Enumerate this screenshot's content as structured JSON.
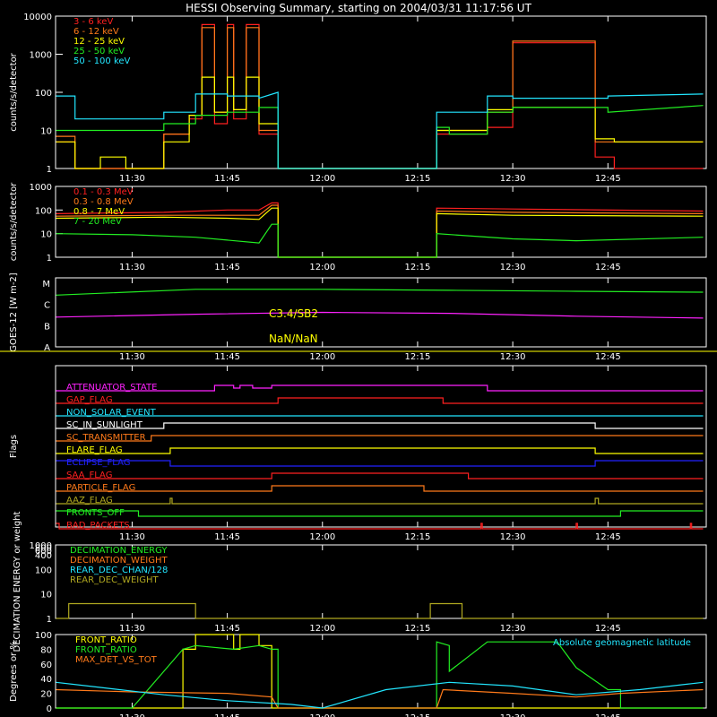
{
  "title": "HESSI Observing Summary, starting on 2004/03/31 11:17:56 UT",
  "time_ticks": [
    "11:30",
    "11:45",
    "12:00",
    "12:15",
    "12:30",
    "12:45"
  ],
  "time_tick_minutes": [
    30,
    45,
    60,
    75,
    90,
    105
  ],
  "time_range_minutes": [
    17.93,
    120.5
  ],
  "colors": {
    "red": "#ff2020",
    "orange": "#ff7a1a",
    "yellow": "#ffff00",
    "green": "#22ee22",
    "cyan": "#22e6ff",
    "magenta": "#ff22ff",
    "blue": "#2222ff",
    "olive": "#b0a820",
    "white": "#ffffff"
  },
  "chart_data": [
    {
      "id": "lc",
      "type": "line",
      "ylabel": "counts/s/detector",
      "yscale": "log",
      "ylim": [
        1,
        10000
      ],
      "ytick_labels": [
        "1",
        "10",
        "100",
        "1000",
        "10000"
      ],
      "legend_placement": "top-left",
      "series": [
        {
          "name": "3 - 6 keV",
          "color": "red",
          "x": [
            18,
            21,
            21,
            25,
            25,
            35,
            35,
            39,
            39,
            41,
            41,
            43,
            43,
            45,
            45,
            46,
            46,
            48,
            48,
            50,
            50,
            53,
            53,
            62,
            62,
            78,
            78,
            86,
            86,
            90,
            90,
            103,
            103,
            106,
            106,
            120
          ],
          "y": [
            5,
            5,
            1,
            1,
            1,
            1,
            8,
            8,
            20,
            20,
            6000,
            6000,
            15,
            15,
            6000,
            6000,
            20,
            20,
            6000,
            6000,
            8,
            8,
            1,
            1,
            1,
            1,
            8,
            8,
            12,
            12,
            2000,
            2000,
            2,
            2,
            1,
            1
          ]
        },
        {
          "name": "6 - 12 keV",
          "color": "orange",
          "x": [
            18,
            21,
            21,
            35,
            35,
            39,
            39,
            41,
            41,
            43,
            43,
            45,
            45,
            46,
            46,
            48,
            48,
            50,
            50,
            53,
            53,
            62,
            62,
            78,
            78,
            86,
            86,
            90,
            90,
            103,
            103,
            106,
            106,
            120
          ],
          "y": [
            7,
            7,
            1,
            1,
            8,
            8,
            25,
            25,
            5000,
            5000,
            30,
            30,
            5000,
            5000,
            35,
            35,
            5000,
            5000,
            10,
            10,
            1,
            1,
            1,
            1,
            10,
            10,
            30,
            30,
            2200,
            2200,
            5,
            5,
            5,
            5
          ]
        },
        {
          "name": "12 - 25 keV",
          "color": "yellow",
          "x": [
            18,
            21,
            21,
            25,
            25,
            29,
            29,
            35,
            35,
            39,
            39,
            41,
            41,
            43,
            43,
            45,
            45,
            46,
            46,
            48,
            48,
            50,
            50,
            53,
            53,
            62,
            62,
            78,
            78,
            86,
            86,
            90,
            90,
            103,
            103,
            106,
            106,
            120
          ],
          "y": [
            5,
            5,
            1,
            1,
            2,
            2,
            1,
            1,
            5,
            5,
            25,
            25,
            250,
            250,
            30,
            30,
            250,
            250,
            35,
            35,
            250,
            250,
            15,
            15,
            1,
            1,
            1,
            1,
            10,
            10,
            35,
            35,
            40,
            40,
            6,
            6,
            5,
            5
          ]
        },
        {
          "name": "25 - 50 keV",
          "color": "green",
          "x": [
            18,
            21,
            21,
            35,
            35,
            40,
            40,
            45,
            45,
            50,
            50,
            53,
            53,
            62,
            62,
            78,
            78,
            80,
            80,
            86,
            86,
            90,
            90,
            105,
            105,
            120
          ],
          "y": [
            10,
            10,
            10,
            10,
            15,
            15,
            25,
            25,
            30,
            30,
            40,
            40,
            1,
            1,
            1,
            1,
            12,
            12,
            8,
            8,
            30,
            30,
            40,
            40,
            30,
            45
          ]
        },
        {
          "name": "50 - 100 keV",
          "color": "cyan",
          "x": [
            18,
            21,
            21,
            35,
            35,
            40,
            40,
            45,
            45,
            50,
            50,
            53,
            53,
            62,
            62,
            78,
            78,
            86,
            86,
            90,
            90,
            105,
            105,
            120
          ],
          "y": [
            80,
            80,
            20,
            20,
            30,
            30,
            90,
            90,
            80,
            80,
            70,
            100,
            1,
            1,
            1,
            1,
            30,
            30,
            80,
            80,
            70,
            70,
            80,
            90
          ]
        }
      ]
    },
    {
      "id": "hi",
      "type": "line",
      "ylabel": "counts/s/detector",
      "yscale": "log",
      "ylim": [
        1,
        1000
      ],
      "ytick_labels": [
        "1",
        "10",
        "100",
        "1000"
      ],
      "legend_placement": "top-left",
      "series": [
        {
          "name": "0.1 - 0.3 MeV",
          "color": "red",
          "x": [
            18,
            35,
            45,
            50,
            52,
            53,
            53,
            78,
            78,
            90,
            120
          ],
          "y": [
            70,
            80,
            100,
            100,
            200,
            200,
            1,
            1,
            120,
            110,
            90
          ]
        },
        {
          "name": "0.3 - 0.8 MeV",
          "color": "orange",
          "x": [
            18,
            35,
            45,
            50,
            52,
            53,
            53,
            78,
            78,
            90,
            120
          ],
          "y": [
            55,
            60,
            60,
            60,
            160,
            160,
            1,
            1,
            90,
            80,
            70
          ]
        },
        {
          "name": "0.8 - 7 MeV",
          "color": "yellow",
          "x": [
            18,
            35,
            45,
            50,
            52,
            53,
            53,
            78,
            78,
            90,
            120
          ],
          "y": [
            45,
            50,
            45,
            40,
            120,
            120,
            1,
            1,
            70,
            60,
            55
          ]
        },
        {
          "name": "7 - 20 MeV",
          "color": "green",
          "x": [
            18,
            30,
            40,
            50,
            52,
            53,
            53,
            78,
            78,
            90,
            100,
            120
          ],
          "y": [
            10,
            9,
            7,
            4,
            25,
            25,
            1,
            1,
            10,
            6,
            5,
            7
          ]
        }
      ]
    },
    {
      "id": "goes",
      "type": "line",
      "ylabel": "GOES-12 [W m-2]",
      "ytick_labels": [
        "A",
        "B",
        "C",
        "M"
      ],
      "annotations": [
        "C3.4/SB2",
        "NaN/NaN"
      ],
      "series": [
        {
          "name": "",
          "color": "green",
          "x": [
            18,
            40,
            60,
            80,
            100,
            120
          ],
          "y": [
            2.7,
            3.0,
            3.0,
            2.95,
            2.9,
            2.85
          ]
        },
        {
          "name": "",
          "color": "magenta",
          "x": [
            18,
            40,
            60,
            80,
            100,
            120
          ],
          "y": [
            1.55,
            1.7,
            1.8,
            1.75,
            1.6,
            1.5
          ]
        }
      ]
    },
    {
      "id": "flags",
      "type": "line",
      "ylabel": "Flags",
      "series": [
        {
          "name": "ATTENUATOR_STATE",
          "color": "magenta",
          "segments": [
            [
              43,
              43.5
            ],
            [
              44,
              44
            ],
            [
              45,
              47
            ],
            [
              47.8,
              48.5
            ],
            [
              48.8,
              60
            ],
            [
              60,
              86
            ]
          ],
          "steps": [
            [
              18,
              43,
              0
            ],
            [
              43,
              46,
              1
            ],
            [
              46,
              47,
              0.5
            ],
            [
              47,
              49,
              1
            ],
            [
              49,
              52,
              0.5
            ],
            [
              52,
              86,
              1
            ],
            [
              86,
              120,
              0
            ]
          ]
        },
        {
          "name": "GAP_FLAG",
          "color": "red",
          "steps": [
            [
              18,
              53,
              0
            ],
            [
              53,
              79,
              1
            ],
            [
              79,
              120,
              0
            ]
          ]
        },
        {
          "name": "NON_SOLAR_EVENT",
          "color": "cyan",
          "steps": [
            [
              18,
              120,
              0
            ]
          ]
        },
        {
          "name": "SC_IN_SUNLIGHT",
          "color": "white",
          "steps": [
            [
              18,
              35,
              0
            ],
            [
              35,
              103,
              1
            ],
            [
              103,
              120,
              0
            ]
          ]
        },
        {
          "name": "SC_TRANSMITTER",
          "color": "orange",
          "steps": [
            [
              18,
              33,
              0
            ],
            [
              33,
              120,
              1
            ]
          ]
        },
        {
          "name": "FLARE_FLAG",
          "color": "yellow",
          "steps": [
            [
              18,
              36,
              0
            ],
            [
              36,
              103,
              1
            ],
            [
              103,
              120,
              0
            ]
          ]
        },
        {
          "name": "ECLIPSE_FLAG",
          "color": "blue",
          "steps": [
            [
              18,
              36,
              1
            ],
            [
              36,
              103,
              0
            ],
            [
              103,
              120,
              1
            ]
          ]
        },
        {
          "name": "SAA_FLAG",
          "color": "red",
          "steps": [
            [
              18,
              52,
              0
            ],
            [
              52,
              83,
              1
            ],
            [
              83,
              120,
              0
            ]
          ]
        },
        {
          "name": "PARTICLE_FLAG",
          "color": "orange",
          "steps": [
            [
              18,
              52,
              0
            ],
            [
              52,
              76,
              1
            ],
            [
              76,
              120,
              0
            ]
          ]
        },
        {
          "name": "AAZ_FLAG",
          "color": "olive",
          "steps": [
            [
              18,
              36,
              0
            ],
            [
              36,
              36.3,
              1
            ],
            [
              36.3,
              103,
              0
            ],
            [
              103,
              103.5,
              1
            ],
            [
              103.5,
              120,
              0
            ]
          ]
        },
        {
          "name": "FRONTS_OFF",
          "color": "green",
          "steps": [
            [
              18,
              31,
              1
            ],
            [
              31,
              107,
              0
            ],
            [
              107,
              120,
              1
            ]
          ]
        },
        {
          "name": "BAD_PACKETS",
          "color": "red",
          "steps": [
            [
              18,
              18.5,
              1
            ],
            [
              18.5,
              85,
              0
            ],
            [
              85,
              85.2,
              1
            ],
            [
              85.2,
              100,
              0
            ],
            [
              100,
              100.2,
              1
            ],
            [
              100.2,
              118,
              0
            ],
            [
              118,
              118.2,
              1
            ],
            [
              118.2,
              120,
              0
            ]
          ]
        }
      ]
    },
    {
      "id": "dec",
      "type": "line",
      "ylabel": "DECIMATION ENERGY or weight",
      "yscale": "log",
      "ylim": [
        1,
        1000
      ],
      "ytick_labels": [
        "1",
        "10",
        "100",
        "400",
        "600",
        "800",
        "1000"
      ],
      "legend_placement": "top-left",
      "series": [
        {
          "name": "DECIMATION_ENERGY",
          "color": "green",
          "x": [
            18,
            120
          ],
          "y": [
            0,
            0
          ]
        },
        {
          "name": "DECIMATION_WEIGHT",
          "color": "orange",
          "x": [
            18,
            120
          ],
          "y": [
            0,
            0
          ]
        },
        {
          "name": "REAR_DEC_CHAN/128",
          "color": "cyan",
          "x": [
            18,
            120
          ],
          "y": [
            0,
            0
          ]
        },
        {
          "name": "REAR_DEC_WEIGHT",
          "color": "olive",
          "x": [
            18,
            20,
            20,
            40,
            40,
            77,
            77,
            82,
            82,
            120
          ],
          "y": [
            1,
            1,
            4,
            4,
            1,
            1,
            4,
            4,
            1,
            1
          ]
        }
      ]
    },
    {
      "id": "ratio",
      "type": "line",
      "ylabel": "Degrees or %",
      "ylim": [
        0,
        100
      ],
      "ytick_labels": [
        "0",
        "20",
        "40",
        "60",
        "80",
        "100"
      ],
      "annotations": [
        "Absolute geomagnetic latitude"
      ],
      "legend_placement": "top-left",
      "series": [
        {
          "name": "FRONT_RATIO",
          "color": "yellow",
          "x": [
            18,
            30,
            30,
            38,
            38,
            40,
            40,
            46,
            46,
            47,
            47,
            50,
            50,
            52,
            52,
            53,
            53,
            82,
            82,
            86,
            86,
            120
          ],
          "y": [
            0,
            0,
            0,
            0,
            80,
            80,
            100,
            100,
            80,
            80,
            100,
            100,
            85,
            85,
            0,
            0,
            0,
            0,
            0,
            0,
            0,
            0
          ]
        },
        {
          "name": "FRONT_RATIO",
          "color": "green",
          "x": [
            18,
            30,
            30,
            38,
            40,
            46,
            50,
            52,
            53,
            53,
            78,
            78,
            80,
            80,
            86,
            90,
            95,
            97,
            100,
            105,
            107,
            107,
            120
          ],
          "y": [
            0,
            0,
            0,
            80,
            85,
            80,
            85,
            80,
            80,
            0,
            0,
            90,
            85,
            50,
            90,
            90,
            90,
            90,
            55,
            25,
            25,
            0,
            0
          ]
        },
        {
          "name": "MAX_DET_VS_TOT",
          "color": "orange",
          "x": [
            18,
            30,
            45,
            52,
            53,
            78,
            79,
            90,
            100,
            107,
            120
          ],
          "y": [
            25,
            22,
            20,
            15,
            0,
            0,
            25,
            20,
            15,
            20,
            25
          ]
        },
        {
          "name": "",
          "color": "cyan",
          "x": [
            18,
            25,
            35,
            45,
            55,
            60,
            70,
            80,
            90,
            100,
            110,
            120
          ],
          "y": [
            35,
            28,
            18,
            10,
            5,
            0,
            25,
            35,
            30,
            18,
            25,
            35
          ]
        }
      ]
    }
  ]
}
